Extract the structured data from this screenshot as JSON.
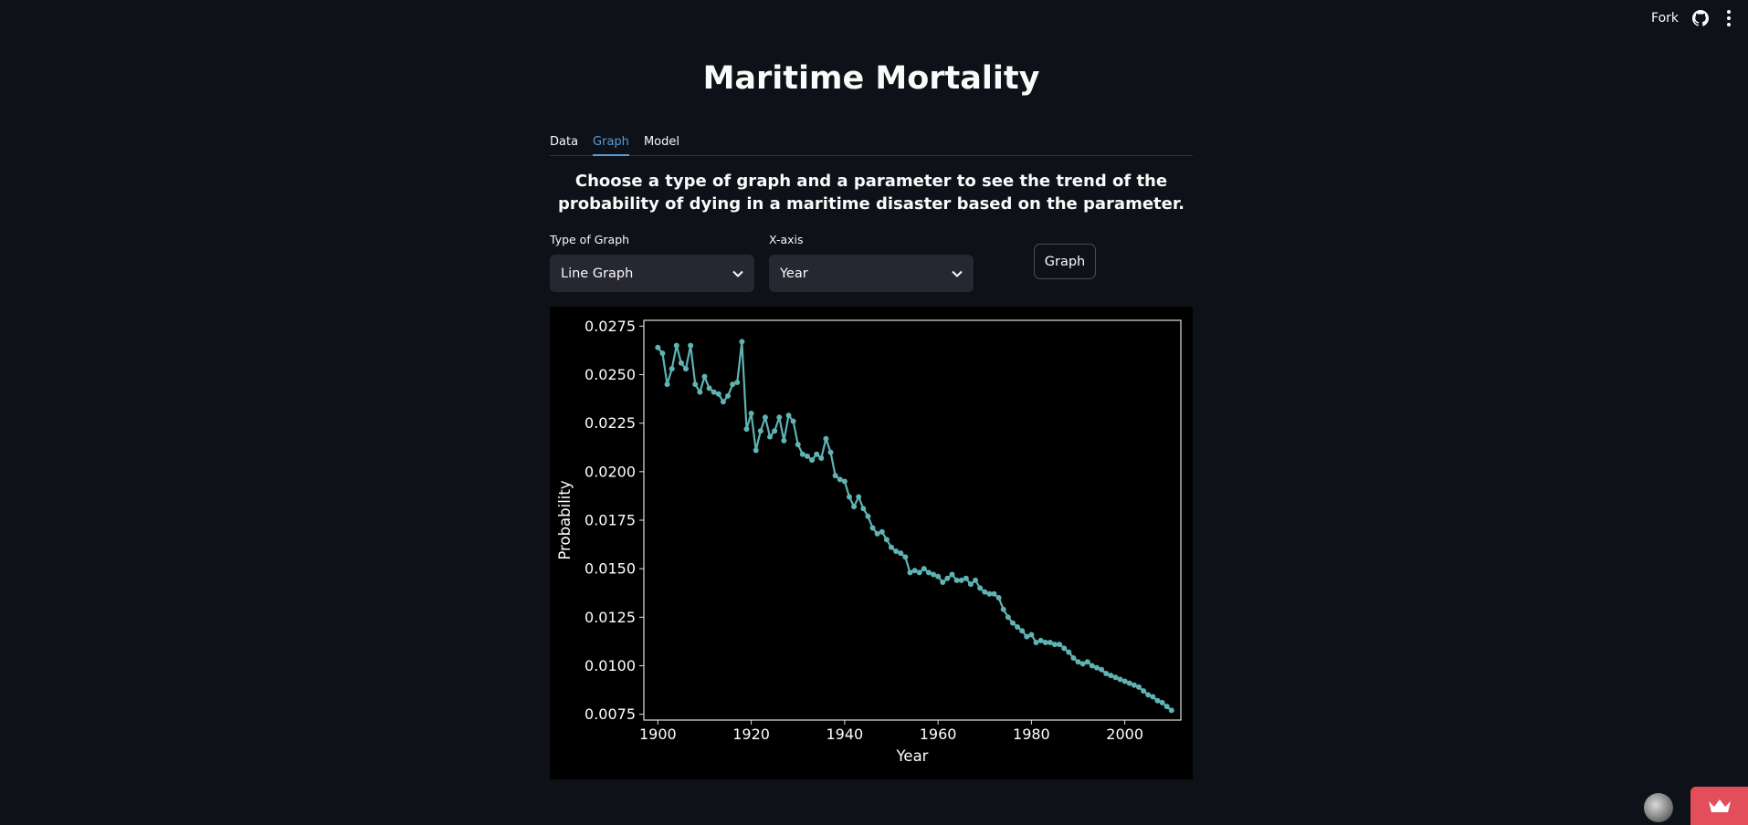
{
  "topbar": {
    "fork_label": "Fork",
    "icons": [
      "github-icon",
      "menu-icon"
    ]
  },
  "page": {
    "title": "Maritime Mortality"
  },
  "tabs": [
    {
      "label": "Data",
      "active": false
    },
    {
      "label": "Graph",
      "active": true
    },
    {
      "label": "Model",
      "active": false
    }
  ],
  "instructions": "Choose a type of graph and a parameter to see the trend of the probability of dying in a maritime disaster based on the parameter.",
  "controls": {
    "graph_type": {
      "label": "Type of Graph",
      "value": "Line Graph"
    },
    "x_axis": {
      "label": "X-axis",
      "value": "Year"
    },
    "graph_button": "Graph"
  },
  "colors": {
    "background": "#0e1117",
    "accent": "#5b9bd5",
    "series": "#5fb3b3",
    "badge": "#e24f5b"
  },
  "chart_data": {
    "type": "line",
    "xlabel": "Year",
    "ylabel": "Probability",
    "xlim": [
      1897,
      2012
    ],
    "ylim": [
      0.0072,
      0.0278
    ],
    "xticks": [
      1900,
      1920,
      1940,
      1960,
      1980,
      2000
    ],
    "yticks": [
      0.0075,
      0.01,
      0.0125,
      0.015,
      0.0175,
      0.02,
      0.0225,
      0.025,
      0.0275
    ],
    "ytick_labels": [
      "0.0075",
      "0.0100",
      "0.0125",
      "0.0150",
      "0.0175",
      "0.0200",
      "0.0225",
      "0.0250",
      "0.0275"
    ],
    "grid": false,
    "markers": true,
    "x": [
      1900,
      1901,
      1902,
      1903,
      1904,
      1905,
      1906,
      1907,
      1908,
      1909,
      1910,
      1911,
      1912,
      1913,
      1914,
      1915,
      1916,
      1917,
      1918,
      1919,
      1920,
      1921,
      1922,
      1923,
      1924,
      1925,
      1926,
      1927,
      1928,
      1929,
      1930,
      1931,
      1932,
      1933,
      1934,
      1935,
      1936,
      1937,
      1938,
      1939,
      1940,
      1941,
      1942,
      1943,
      1944,
      1945,
      1946,
      1947,
      1948,
      1949,
      1950,
      1951,
      1952,
      1953,
      1954,
      1955,
      1956,
      1957,
      1958,
      1959,
      1960,
      1961,
      1962,
      1963,
      1964,
      1965,
      1966,
      1967,
      1968,
      1969,
      1970,
      1971,
      1972,
      1973,
      1974,
      1975,
      1976,
      1977,
      1978,
      1979,
      1980,
      1981,
      1982,
      1983,
      1984,
      1985,
      1986,
      1987,
      1988,
      1989,
      1990,
      1991,
      1992,
      1993,
      1994,
      1995,
      1996,
      1997,
      1998,
      1999,
      2000,
      2001,
      2002,
      2003,
      2004,
      2005,
      2006,
      2007,
      2008,
      2009,
      2010
    ],
    "y": [
      0.0264,
      0.0261,
      0.0245,
      0.0253,
      0.0265,
      0.0256,
      0.0253,
      0.0265,
      0.0245,
      0.0241,
      0.0249,
      0.0243,
      0.0241,
      0.024,
      0.0236,
      0.0239,
      0.0245,
      0.0246,
      0.0267,
      0.0222,
      0.023,
      0.0211,
      0.0221,
      0.0228,
      0.0218,
      0.0221,
      0.0228,
      0.0216,
      0.0229,
      0.0226,
      0.0214,
      0.0209,
      0.0208,
      0.0206,
      0.0209,
      0.0207,
      0.0217,
      0.021,
      0.0198,
      0.0196,
      0.0195,
      0.0187,
      0.0182,
      0.0187,
      0.0181,
      0.0177,
      0.0171,
      0.0168,
      0.0169,
      0.0165,
      0.0161,
      0.0159,
      0.0158,
      0.0156,
      0.0148,
      0.0149,
      0.0148,
      0.015,
      0.0148,
      0.0147,
      0.0146,
      0.0143,
      0.0145,
      0.0147,
      0.0144,
      0.0144,
      0.0145,
      0.0142,
      0.0144,
      0.014,
      0.0138,
      0.0137,
      0.0137,
      0.0135,
      0.0129,
      0.0125,
      0.0122,
      0.012,
      0.0118,
      0.0115,
      0.0116,
      0.0112,
      0.0113,
      0.0112,
      0.0112,
      0.0111,
      0.0111,
      0.0109,
      0.0107,
      0.0104,
      0.0102,
      0.0101,
      0.0102,
      0.01,
      0.0099,
      0.0098,
      0.0096,
      0.0095,
      0.0094,
      0.0093,
      0.0092,
      0.0091,
      0.009,
      0.0089,
      0.0087,
      0.0085,
      0.0084,
      0.0082,
      0.0081,
      0.0079,
      0.0077
    ]
  }
}
